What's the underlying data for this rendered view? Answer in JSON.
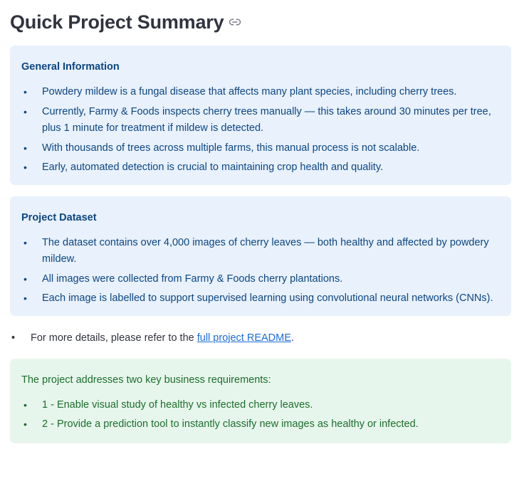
{
  "header": {
    "title": "Quick Project Summary",
    "anchor_icon": "link-icon"
  },
  "general": {
    "heading": "General Information",
    "items": [
      "Powdery mildew is a fungal disease that affects many plant species, including cherry trees.",
      "Currently, Farmy & Foods inspects cherry trees manually — this takes around 30 minutes per tree, plus 1 minute for treatment if mildew is detected.",
      "With thousands of trees across multiple farms, this manual process is not scalable.",
      "Early, automated detection is crucial to maintaining crop health and quality."
    ]
  },
  "dataset": {
    "heading": "Project Dataset",
    "items": [
      "The dataset contains over 4,000 images of cherry leaves — both healthy and affected by powdery mildew.",
      "All images were collected from Farmy & Foods cherry plantations.",
      "Each image is labelled to support supervised learning using convolutional neural networks (CNNs)."
    ]
  },
  "more": {
    "prefix": "For more details, please refer to the ",
    "link_text": "full project README",
    "suffix": "."
  },
  "requirements": {
    "intro": "The project addresses two key business requirements:",
    "items": [
      "1 - Enable visual study of healthy vs infected cherry leaves.",
      "2 - Provide a prediction tool to instantly classify new images as healthy or infected."
    ]
  },
  "colors": {
    "info_bg": "#e8f1fc",
    "info_text": "#0d4680",
    "success_bg": "#e7f6ec",
    "success_text": "#1c6e2d",
    "link": "#1c6cd8"
  }
}
